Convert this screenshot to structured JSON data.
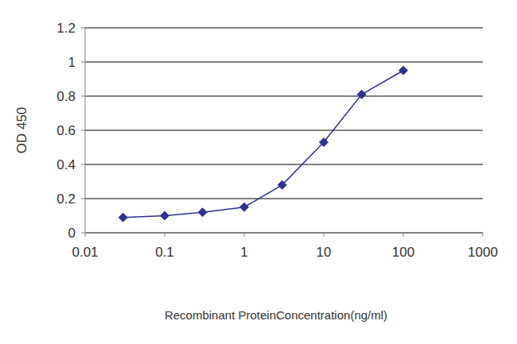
{
  "chart_data": {
    "type": "line",
    "x_label": "Recombinant ProteinConcentration(ng/ml)",
    "y_label": "OD 450",
    "x": [
      0.03,
      0.1,
      0.3,
      1,
      3,
      10,
      30,
      100
    ],
    "values": [
      0.09,
      0.1,
      0.12,
      0.15,
      0.28,
      0.53,
      0.81,
      0.95
    ],
    "color": "#2e3192",
    "marker": "diamond",
    "xlim": [
      0.01,
      1000
    ],
    "xticks": [
      0.01,
      0.1,
      1,
      10,
      100,
      1000
    ],
    "ylim": [
      0,
      1.2
    ],
    "yticks": [
      0,
      0.2,
      0.4,
      0.6,
      0.8,
      1,
      1.2
    ],
    "log": "x",
    "grid": true
  }
}
